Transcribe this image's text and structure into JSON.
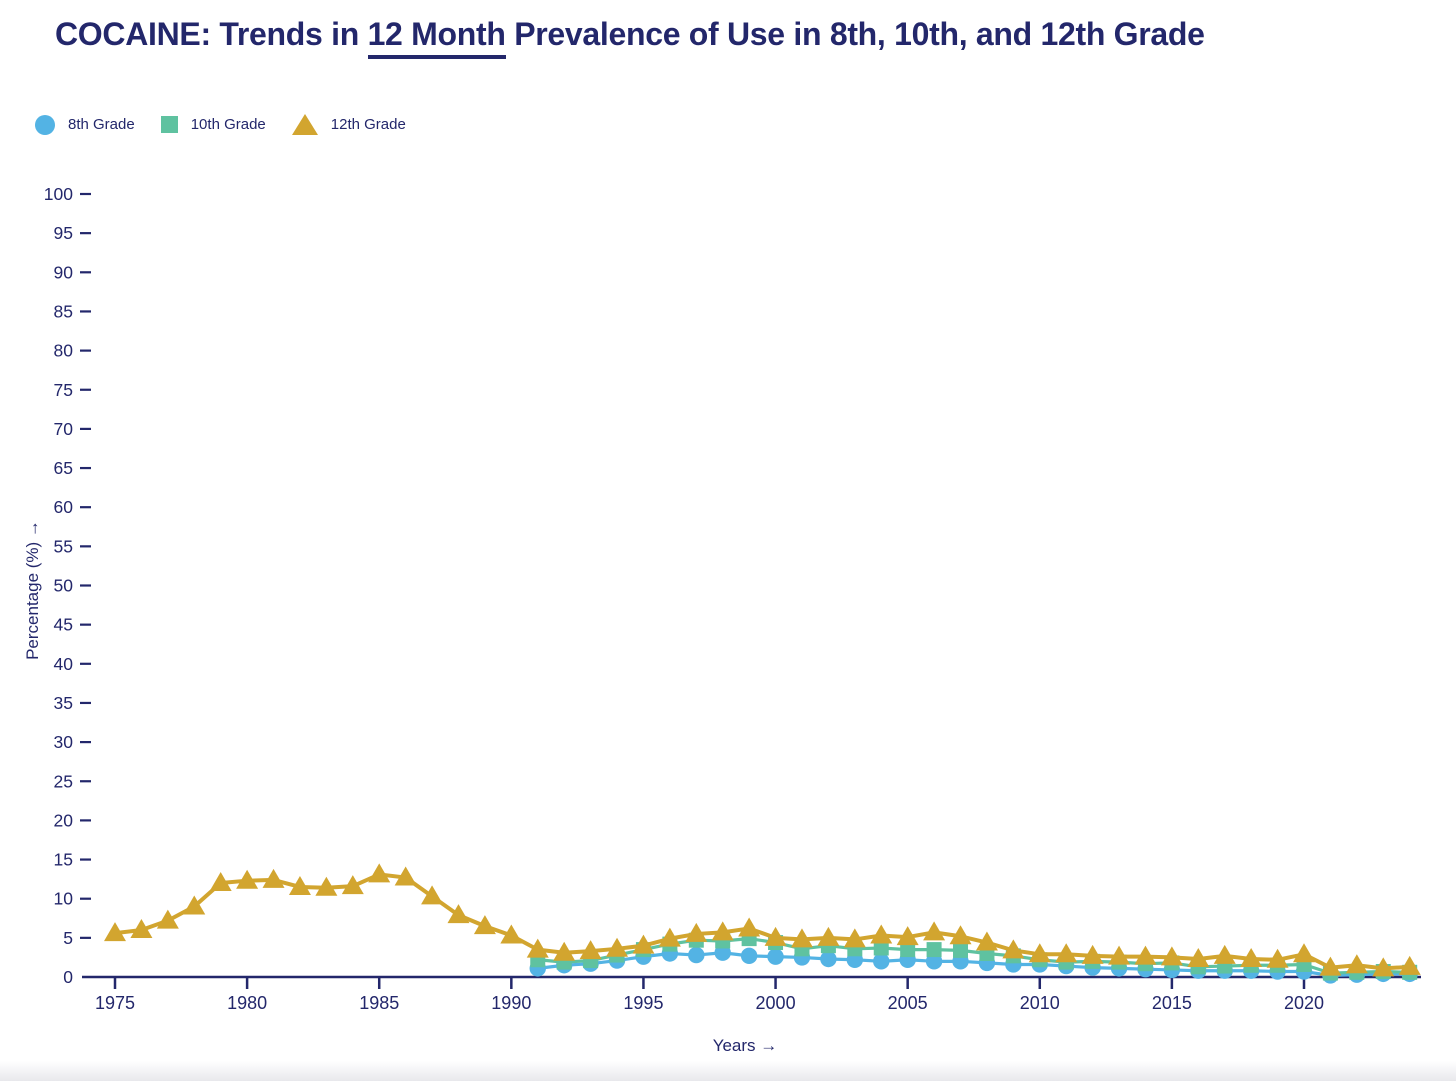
{
  "title": {
    "prefix": "COCAINE: Trends in ",
    "underlined": "12 Month",
    "suffix": " Prevalence of Use in 8th, 10th, and 12th Grade"
  },
  "legend": {
    "items": [
      {
        "label": "8th Grade",
        "marker": "circle",
        "color": "#53b3e4"
      },
      {
        "label": "10th Grade",
        "marker": "square",
        "color": "#5fc2a0"
      },
      {
        "label": "12th Grade",
        "marker": "triangle",
        "color": "#d2a52f"
      }
    ]
  },
  "colors": {
    "navy": "#23276b",
    "blue": "#53b3e4",
    "green": "#5fc2a0",
    "gold": "#d2a52f"
  },
  "chart_data": {
    "type": "line",
    "title": "COCAINE: Trends in 12 Month Prevalence of Use in 8th, 10th, and 12th Grade",
    "xlabel": "Years →",
    "ylabel": "Percentage (%) →",
    "ylim": [
      0,
      100
    ],
    "ytick_step": 5,
    "xticks": [
      1975,
      1980,
      1985,
      1990,
      1995,
      2000,
      2005,
      2010,
      2015,
      2020
    ],
    "xrange": [
      1975,
      2024
    ],
    "grid": false,
    "legend_position": "top-left",
    "series": [
      {
        "name": "8th Grade",
        "marker": "circle",
        "color": "#53b3e4",
        "x": [
          1991,
          1992,
          1993,
          1994,
          1995,
          1996,
          1997,
          1998,
          1999,
          2000,
          2001,
          2002,
          2003,
          2004,
          2005,
          2006,
          2007,
          2008,
          2009,
          2010,
          2011,
          2012,
          2013,
          2014,
          2015,
          2016,
          2017,
          2018,
          2019,
          2020,
          2021,
          2022,
          2023,
          2024
        ],
        "values": [
          1.1,
          1.5,
          1.7,
          2.1,
          2.6,
          3.0,
          2.8,
          3.1,
          2.7,
          2.6,
          2.5,
          2.3,
          2.2,
          2.0,
          2.2,
          2.0,
          2.0,
          1.8,
          1.6,
          1.6,
          1.4,
          1.2,
          1.1,
          1.0,
          0.9,
          0.8,
          0.8,
          0.8,
          0.7,
          0.7,
          0.2,
          0.3,
          0.4,
          0.4
        ]
      },
      {
        "name": "10th Grade",
        "marker": "square",
        "color": "#5fc2a0",
        "x": [
          1991,
          1992,
          1993,
          1994,
          1995,
          1996,
          1997,
          1998,
          1999,
          2000,
          2001,
          2002,
          2003,
          2004,
          2005,
          2006,
          2007,
          2008,
          2009,
          2010,
          2011,
          2012,
          2013,
          2014,
          2015,
          2016,
          2017,
          2018,
          2019,
          2020,
          2021,
          2022,
          2023,
          2024
        ],
        "values": [
          2.2,
          1.9,
          2.1,
          2.8,
          3.5,
          4.2,
          4.7,
          4.6,
          4.9,
          4.4,
          3.6,
          4.0,
          3.6,
          3.7,
          3.5,
          3.5,
          3.4,
          3.0,
          2.7,
          2.2,
          1.9,
          2.0,
          1.9,
          1.7,
          1.8,
          1.3,
          1.4,
          1.5,
          1.5,
          1.6,
          0.5,
          0.6,
          0.7,
          0.6
        ]
      },
      {
        "name": "12th Grade",
        "marker": "triangle",
        "color": "#d2a52f",
        "x": [
          1975,
          1976,
          1977,
          1978,
          1979,
          1980,
          1981,
          1982,
          1983,
          1984,
          1985,
          1986,
          1987,
          1988,
          1989,
          1990,
          1991,
          1992,
          1993,
          1994,
          1995,
          1996,
          1997,
          1998,
          1999,
          2000,
          2001,
          2002,
          2003,
          2004,
          2005,
          2006,
          2007,
          2008,
          2009,
          2010,
          2011,
          2012,
          2013,
          2014,
          2015,
          2016,
          2017,
          2018,
          2019,
          2020,
          2021,
          2022,
          2023,
          2024
        ],
        "values": [
          5.6,
          6.0,
          7.2,
          9.0,
          12.0,
          12.3,
          12.4,
          11.5,
          11.4,
          11.6,
          13.1,
          12.7,
          10.3,
          7.9,
          6.5,
          5.3,
          3.5,
          3.1,
          3.3,
          3.6,
          4.0,
          4.9,
          5.5,
          5.7,
          6.2,
          5.0,
          4.8,
          5.0,
          4.8,
          5.3,
          5.1,
          5.7,
          5.2,
          4.4,
          3.4,
          2.9,
          2.9,
          2.7,
          2.6,
          2.6,
          2.5,
          2.3,
          2.7,
          2.3,
          2.2,
          2.9,
          1.2,
          1.5,
          1.1,
          1.3
        ]
      }
    ]
  }
}
